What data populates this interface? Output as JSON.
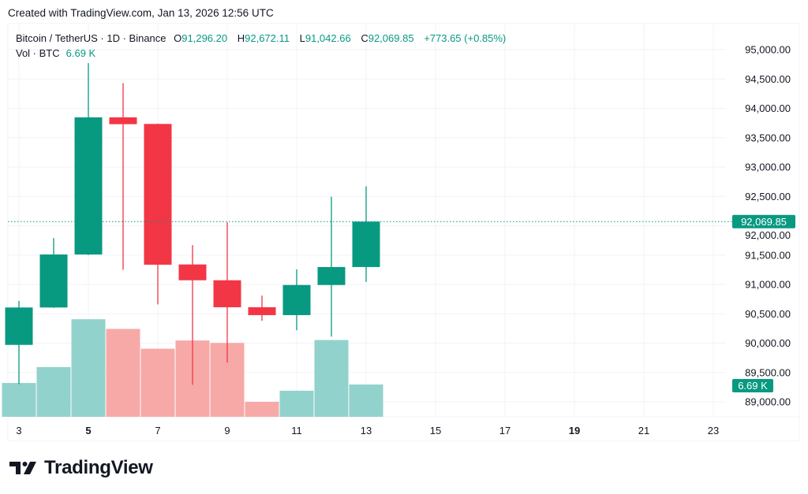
{
  "credit": "Created with TradingView.com, Jan 13, 2026 12:56 UTC",
  "legend": {
    "symbol": "Bitcoin / TetherUS · 1D · Binance",
    "o_label": "O",
    "o": "91,296.20",
    "h_label": "H",
    "h": "92,672.11",
    "l_label": "L",
    "l": "91,042.66",
    "c_label": "C",
    "c": "92,069.85",
    "change": "+773.65 (+0.85%)",
    "vol_label": "Vol · BTC",
    "vol": "6.69 K"
  },
  "logo": {
    "text": "TradingView"
  },
  "colors": {
    "up": "#089981",
    "down": "#f23645",
    "vol_up": "#92d2cc",
    "vol_down": "#f7a9a7",
    "grid": "#f0f3fa"
  },
  "chart_data": {
    "type": "candlestick",
    "x_unit": "day of month",
    "ylim": [
      88800,
      95300
    ],
    "grid": true,
    "y_ticks": [
      "89,000.00",
      "89,500.00",
      "90,000.00",
      "90,500.00",
      "91,000.00",
      "91,500.00",
      "92,000.00",
      "92,500.00",
      "93,000.00",
      "93,500.00",
      "94,000.00",
      "94,500.00",
      "95,000.00"
    ],
    "y_tick_values": [
      89000,
      89500,
      90000,
      90500,
      91000,
      91500,
      92000,
      92500,
      93000,
      93500,
      94000,
      94500,
      95000
    ],
    "x_ticks": [
      {
        "day": 3,
        "label": "3",
        "bold": false
      },
      {
        "day": 5,
        "label": "5",
        "bold": true
      },
      {
        "day": 7,
        "label": "7",
        "bold": false
      },
      {
        "day": 9,
        "label": "9",
        "bold": false
      },
      {
        "day": 11,
        "label": "11",
        "bold": false
      },
      {
        "day": 13,
        "label": "13",
        "bold": false
      },
      {
        "day": 15,
        "label": "15",
        "bold": false
      },
      {
        "day": 17,
        "label": "17",
        "bold": false
      },
      {
        "day": 19,
        "label": "19",
        "bold": true
      },
      {
        "day": 21,
        "label": "21",
        "bold": false
      },
      {
        "day": 23,
        "label": "23",
        "bold": false
      }
    ],
    "candles": [
      {
        "day": 3,
        "open": 89970,
        "high": 90720,
        "low": 89300,
        "close": 90607,
        "volume_k": 7.0
      },
      {
        "day": 4,
        "open": 90607,
        "high": 91790,
        "low": 90600,
        "close": 91510,
        "volume_k": 10.3
      },
      {
        "day": 5,
        "open": 91510,
        "high": 94770,
        "low": 91500,
        "close": 93846,
        "volume_k": 20.2
      },
      {
        "day": 6,
        "open": 93846,
        "high": 94430,
        "low": 91250,
        "close": 93730,
        "volume_k": 18.2
      },
      {
        "day": 7,
        "open": 93734,
        "high": 93740,
        "low": 90660,
        "close": 91336,
        "volume_k": 14.1
      },
      {
        "day": 8,
        "open": 91340,
        "high": 91670,
        "low": 89290,
        "close": 91071,
        "volume_k": 15.8
      },
      {
        "day": 9,
        "open": 91071,
        "high": 92060,
        "low": 89670,
        "close": 90611,
        "volume_k": 15.3
      },
      {
        "day": 10,
        "open": 90611,
        "high": 90810,
        "low": 90380,
        "close": 90477,
        "volume_k": 3.1
      },
      {
        "day": 11,
        "open": 90477,
        "high": 91255,
        "low": 90220,
        "close": 90990,
        "volume_k": 5.4
      },
      {
        "day": 12,
        "open": 90990,
        "high": 92494,
        "low": 90110,
        "close": 91296.2,
        "volume_k": 15.9
      },
      {
        "day": 13,
        "open": 91296.2,
        "high": 92672.11,
        "low": 91042.66,
        "close": 92069.85,
        "volume_k": 6.69
      }
    ],
    "last_price_label": "92,069.85",
    "last_price": 92069.85,
    "volume_label": "6.69 K"
  }
}
